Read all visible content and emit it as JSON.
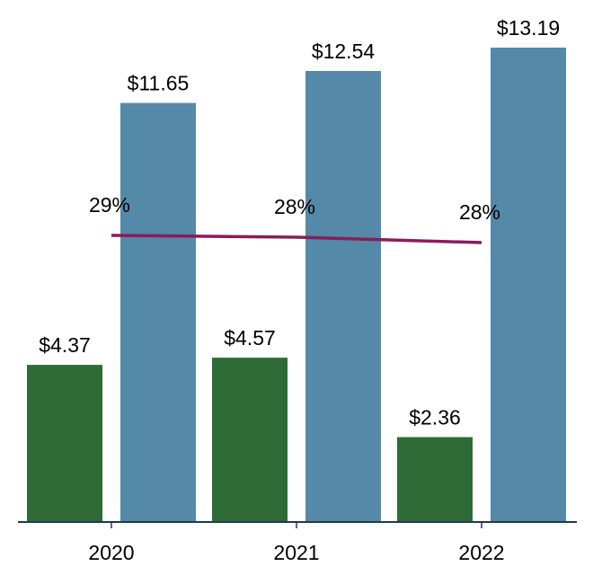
{
  "chart_data": {
    "type": "bar",
    "categories": [
      "2020",
      "2021",
      "2022"
    ],
    "series": [
      {
        "values": [
          4.37,
          4.57,
          2.36
        ],
        "labels": [
          "$4.37",
          "$4.57",
          "$2.36"
        ],
        "color": "#2e6b36",
        "kind": "bar"
      },
      {
        "values": [
          11.65,
          12.54,
          13.19
        ],
        "labels": [
          "$11.65",
          "$12.54",
          "$13.19"
        ],
        "color": "#5589a8",
        "kind": "bar"
      },
      {
        "values": [
          29,
          28,
          28
        ],
        "labels": [
          "29%",
          "28%",
          "28%"
        ],
        "color": "#8b1c5a",
        "kind": "line"
      }
    ],
    "title": "",
    "xlabel": "",
    "ylabel": "",
    "ylim": [
      0,
      13.5
    ],
    "line_ylim": [
      0,
      60
    ],
    "grid": false,
    "axis_color": "#1f3a4d"
  }
}
